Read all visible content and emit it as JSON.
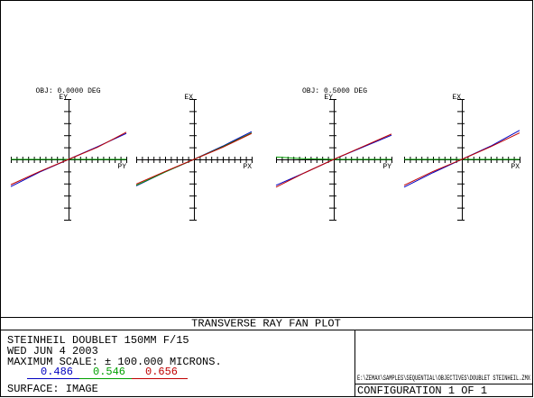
{
  "x": [
    -1,
    -0.5,
    0,
    0.5,
    1
  ],
  "xlim": [
    -1,
    1
  ],
  "ylim": [
    -100,
    100
  ],
  "fields": [
    {
      "title": "OBJ: 0.0000 DEG",
      "plots": [
        {
          "y_label": "EY",
          "x_label": "PY",
          "series": [
            {
              "color": "#0000c0",
              "values": [
                -45,
                -21,
                0,
                21,
                43
              ]
            },
            {
              "color": "#00a000",
              "values": [
                0,
                0,
                0,
                0,
                0
              ]
            },
            {
              "color": "#c00000",
              "values": [
                -42,
                -20,
                0,
                20,
                45
              ]
            }
          ]
        },
        {
          "y_label": "EX",
          "x_label": "PX",
          "series": [
            {
              "color": "#0000c0",
              "values": [
                -44,
                -21,
                0,
                22,
                46
              ]
            },
            {
              "color": "#00a000",
              "values": [
                -43,
                -21,
                0,
                21,
                44
              ]
            },
            {
              "color": "#c00000",
              "values": [
                -41,
                -20,
                0,
                20,
                43
              ]
            }
          ]
        }
      ]
    },
    {
      "title": "OBJ: 0.5000 DEG",
      "plots": [
        {
          "y_label": "EY",
          "x_label": "PY",
          "series": [
            {
              "color": "#0000c0",
              "values": [
                -43,
                -22,
                0,
                20,
                40
              ]
            },
            {
              "color": "#00a000",
              "values": [
                4,
                1,
                0,
                0,
                0
              ]
            },
            {
              "color": "#c00000",
              "values": [
                -46,
                -22,
                0,
                21,
                42
              ]
            }
          ]
        },
        {
          "y_label": "EX",
          "x_label": "PX",
          "series": [
            {
              "color": "#0000c0",
              "values": [
                -46,
                -22,
                0,
                22,
                48
              ]
            },
            {
              "color": "#00a000",
              "values": [
                0,
                0,
                0,
                0,
                0
              ]
            },
            {
              "color": "#c00000",
              "values": [
                -43,
                -20,
                0,
                21,
                44
              ]
            }
          ]
        }
      ]
    }
  ],
  "footer": {
    "heading": "TRANSVERSE RAY FAN PLOT",
    "lines": [
      "STEINHEIL DOUBLET 150MM F/15",
      "WED JUN 4 2003",
      "MAXIMUM SCALE: ± 100.000 MICRONS."
    ],
    "wavelengths": [
      {
        "label": "0.486",
        "color": "#0000c0"
      },
      {
        "label": "0.546",
        "color": "#00a000"
      },
      {
        "label": "0.656",
        "color": "#c00000"
      }
    ],
    "surface": "SURFACE: IMAGE",
    "file": "E:\\ZEMAX\\SAMPLES\\SEQUENTIAL\\OBJECTIVES\\DOUBLET STEINHEIL.ZMX",
    "configuration": "CONFIGURATION 1 OF 1"
  }
}
